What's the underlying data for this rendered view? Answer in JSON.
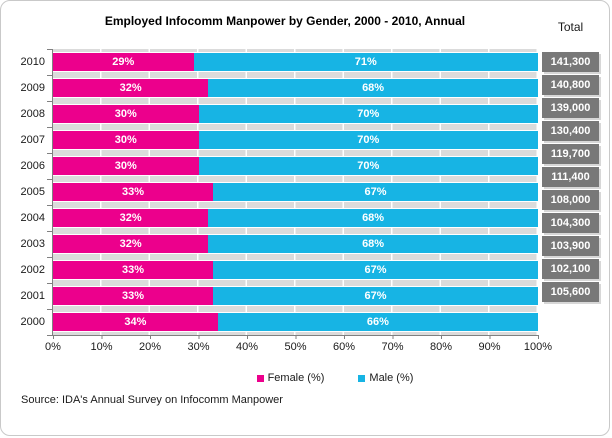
{
  "header": {
    "title": "Employed Infocomm Manpower by Gender, 2000 - 2010, Annual",
    "total_column_label": "Total"
  },
  "colors": {
    "female": "#EC008C",
    "male": "#17B4E4",
    "total_box": "#787878",
    "plot_track": "#DBDBDB",
    "axis": "#808080"
  },
  "legend": {
    "items": [
      {
        "label": "Female (%)",
        "color": "#EC008C",
        "swatch": "female-swatch"
      },
      {
        "label": "Male (%)",
        "color": "#17B4E4",
        "swatch": "male-swatch"
      }
    ]
  },
  "footer": {
    "source": "Source: IDA's Annual Survey on Infocomm Manpower"
  },
  "chart_data": {
    "type": "bar",
    "orientation": "horizontal-stacked",
    "title": "Employed Infocomm Manpower by Gender, 2000 - 2010, Annual",
    "categories": [
      "2010",
      "2009",
      "2008",
      "2007",
      "2006",
      "2005",
      "2004",
      "2003",
      "2002",
      "2001",
      "2000"
    ],
    "series": [
      {
        "name": "Female (%)",
        "color": "#EC008C",
        "values": [
          29,
          32,
          30,
          30,
          30,
          33,
          32,
          32,
          33,
          33,
          34
        ]
      },
      {
        "name": "Male (%)",
        "color": "#17B4E4",
        "values": [
          71,
          68,
          70,
          70,
          70,
          67,
          68,
          68,
          67,
          67,
          66
        ]
      }
    ],
    "totals": [
      "141,300",
      "140,800",
      "139,000",
      "130,400",
      "119,700",
      "111,400",
      "108,000",
      "104,300",
      "103,900",
      "102,100",
      "105,600"
    ],
    "xlabel": "",
    "ylabel": "",
    "xlim": [
      0,
      100
    ],
    "xticks": [
      "0%",
      "10%",
      "20%",
      "30%",
      "40%",
      "50%",
      "60%",
      "70%",
      "80%",
      "90%",
      "100%"
    ],
    "grid": "vertical-white-lines",
    "legend_position": "bottom"
  }
}
